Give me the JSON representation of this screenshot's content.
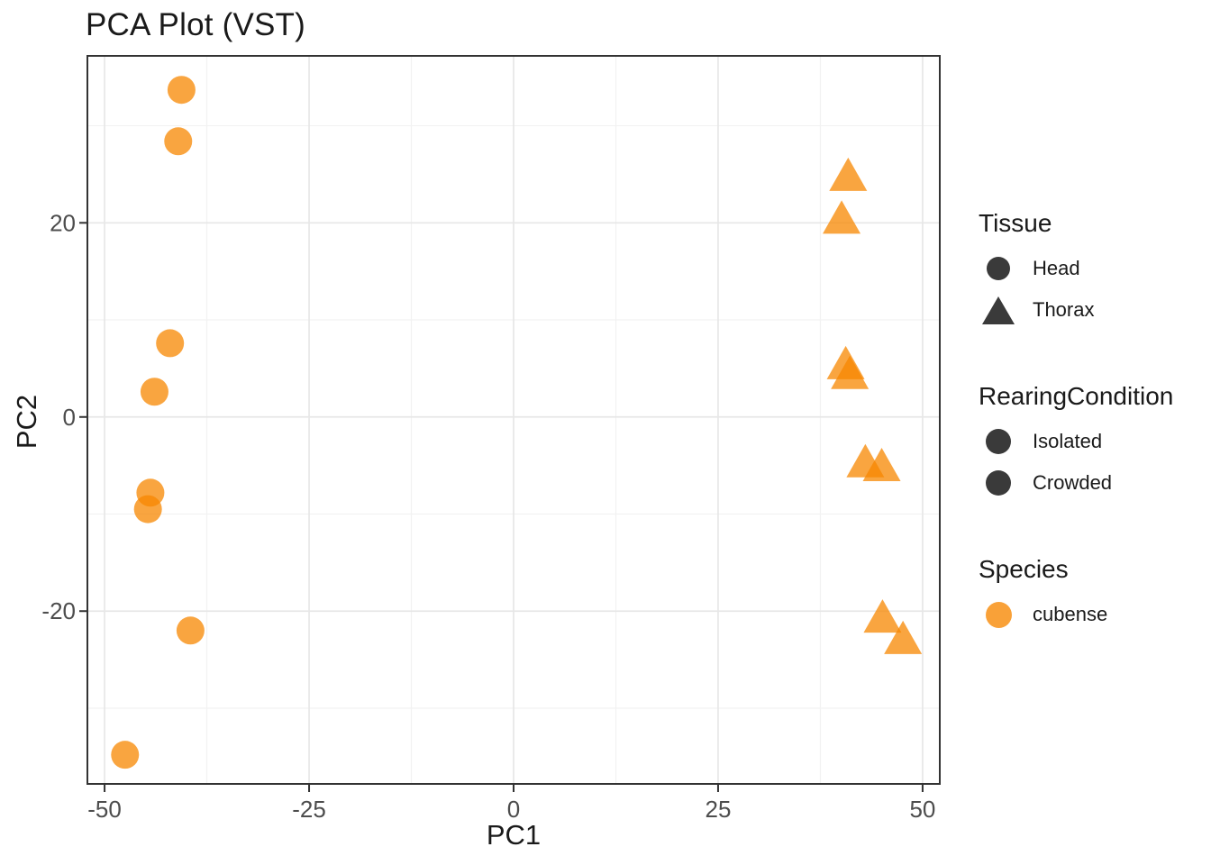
{
  "title": "PCA Plot (VST)",
  "colors": {
    "background": "#ffffff",
    "text": "#1a1a1a",
    "tick_label": "#4d4d4d",
    "panel_border": "#333333",
    "grid_major": "#e7e7e7",
    "grid_minor": "#f2f2f2",
    "legend_dark": "#3a3a3a",
    "point_orange": "#f78700",
    "point_opacity": 0.75
  },
  "chart_data": {
    "type": "scatter",
    "title": "PCA Plot (VST)",
    "xlabel": "PC1",
    "ylabel": "PC2",
    "xlim": [
      -52.1,
      52.1
    ],
    "ylim": [
      -37.8,
      37.2
    ],
    "x_major_ticks": [
      -50,
      -25,
      0,
      25,
      50
    ],
    "y_major_ticks": [
      -20,
      0,
      20
    ],
    "x_minor_ticks": [
      -37.5,
      -12.5,
      12.5,
      37.5
    ],
    "y_minor_ticks": [
      -30,
      -10,
      10,
      30
    ],
    "grid": "major+minor",
    "legend_position": "right",
    "series": [
      {
        "name": "Head",
        "marker": "circle",
        "species": "cubense",
        "points": [
          [
            -40.6,
            33.7
          ],
          [
            -41.0,
            28.4
          ],
          [
            -42.0,
            7.6
          ],
          [
            -43.9,
            2.6
          ],
          [
            -44.4,
            -7.8
          ],
          [
            -44.7,
            -9.5
          ],
          [
            -39.5,
            -22.0
          ],
          [
            -47.5,
            -34.8
          ]
        ]
      },
      {
        "name": "Thorax",
        "marker": "triangle",
        "species": "cubense",
        "points": [
          [
            40.9,
            25.0
          ],
          [
            40.1,
            20.6
          ],
          [
            40.6,
            5.6
          ],
          [
            41.1,
            4.6
          ],
          [
            43.0,
            -4.5
          ],
          [
            45.0,
            -4.9
          ],
          [
            45.1,
            -20.5
          ],
          [
            47.6,
            -22.7
          ]
        ]
      }
    ]
  },
  "legend": {
    "tissue": {
      "title": "Tissue",
      "items": [
        {
          "label": "Head",
          "marker": "circle"
        },
        {
          "label": "Thorax",
          "marker": "triangle"
        }
      ]
    },
    "rearing_condition": {
      "title": "RearingCondition",
      "items": [
        {
          "label": "Isolated",
          "marker": "circle"
        },
        {
          "label": "Crowded",
          "marker": "circle"
        }
      ]
    },
    "species": {
      "title": "Species",
      "items": [
        {
          "label": "cubense",
          "marker": "circle",
          "color": "#f78700"
        }
      ]
    }
  }
}
